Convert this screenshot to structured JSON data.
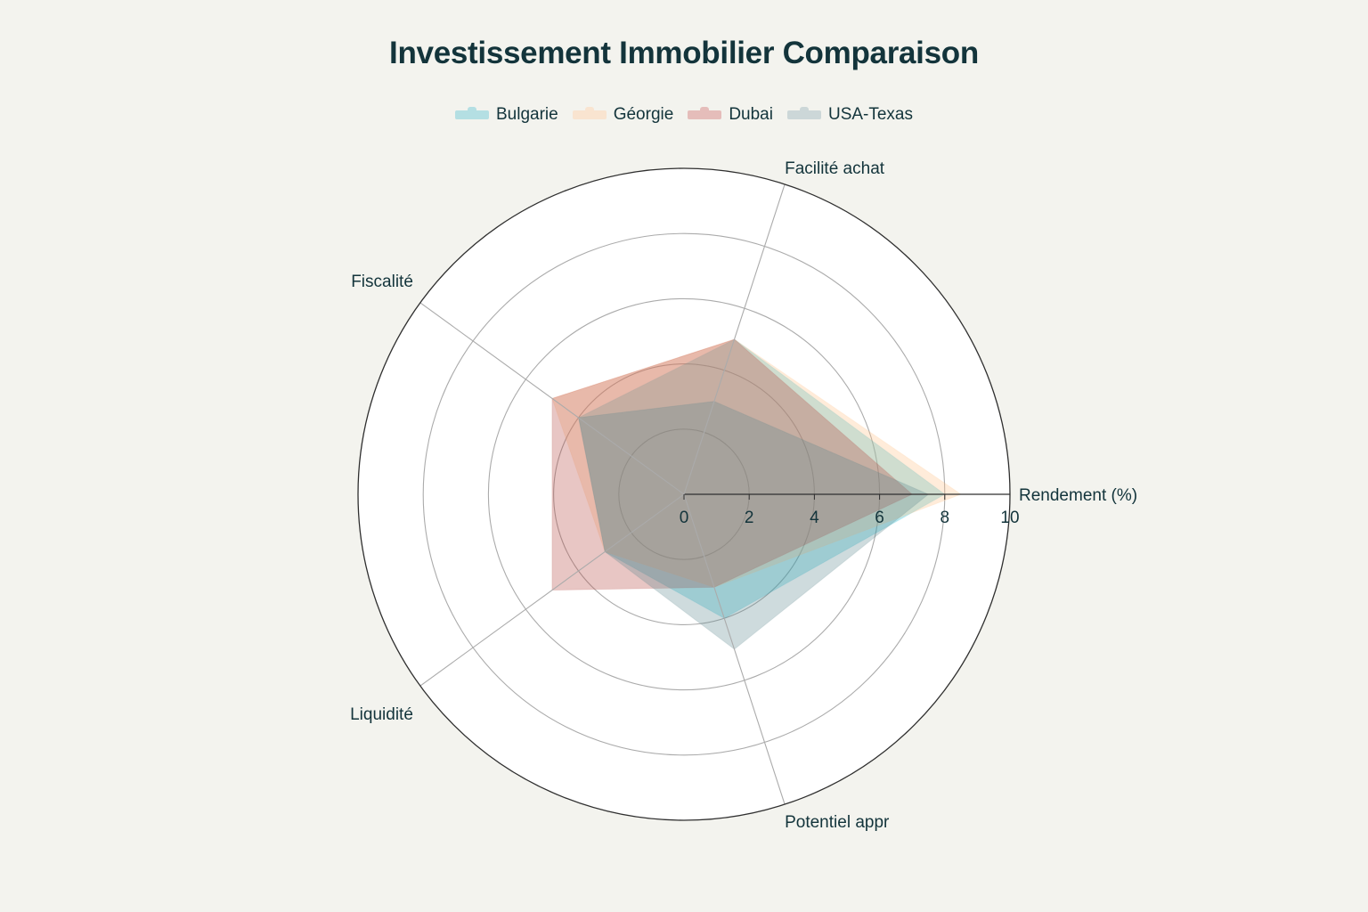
{
  "title": "Investissement Immobilier Comparaison",
  "legend": [
    {
      "name": "Bulgarie",
      "color": "#1FB8CD"
    },
    {
      "name": "Géorgie",
      "color": "#FFC185"
    },
    {
      "name": "Dubai",
      "color": "#B4413C"
    },
    {
      "name": "USA-Texas",
      "color": "#5D878F"
    }
  ],
  "chart_data": {
    "type": "radar",
    "title": "Investissement Immobilier Comparaison",
    "categories": [
      "Rendement (%)",
      "Facilité achat",
      "Fiscalité",
      "Liquidité",
      "Potentiel appr"
    ],
    "series": [
      {
        "name": "Bulgarie",
        "color": "#1FB8CD",
        "values": [
          8.0,
          5,
          4,
          3,
          4
        ]
      },
      {
        "name": "Géorgie",
        "color": "#FFC185",
        "values": [
          8.5,
          5,
          5,
          3,
          3
        ]
      },
      {
        "name": "Dubai",
        "color": "#B4413C",
        "values": [
          7.0,
          5,
          5,
          5,
          3
        ]
      },
      {
        "name": "USA-Texas",
        "color": "#5D878F",
        "values": [
          7.5,
          3,
          4,
          3,
          5
        ]
      }
    ],
    "radial_range": [
      0,
      10
    ],
    "radial_ticks": [
      "0",
      "2",
      "4",
      "6",
      "8",
      "10"
    ],
    "legend_position": "top",
    "grid": true
  }
}
